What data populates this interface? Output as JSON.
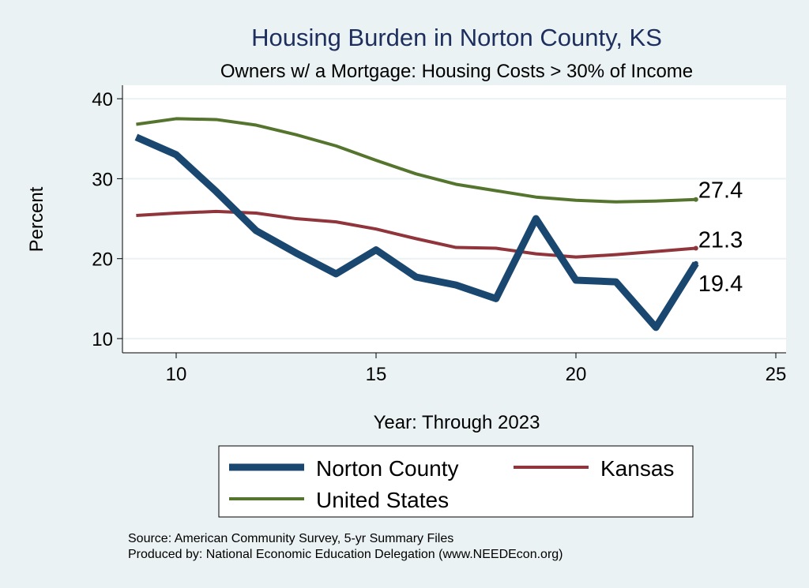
{
  "chart_data": {
    "type": "line",
    "title": "Housing Burden in Norton County, KS",
    "subtitle": "Owners w/ a Mortgage: Housing Costs > 30% of Income",
    "xlabel": "Year: Through 2023",
    "ylabel": "Percent",
    "xlim": [
      8.7,
      25.3
    ],
    "ylim": [
      8.2,
      41.7
    ],
    "xticks": [
      10,
      15,
      20,
      25
    ],
    "yticks": [
      10,
      20,
      30,
      40
    ],
    "grid": true,
    "legend_placement": "bottom",
    "x": [
      9,
      10,
      11,
      12,
      13,
      14,
      15,
      16,
      17,
      18,
      19,
      20,
      21,
      22,
      23
    ],
    "series": [
      {
        "name": "Norton County",
        "color": "#1a476f",
        "width": 9,
        "values": [
          35.2,
          33.0,
          28.4,
          23.5,
          20.7,
          18.1,
          21.1,
          17.7,
          16.7,
          15.0,
          25.0,
          17.3,
          17.1,
          11.4,
          19.4
        ],
        "end_label": "19.4"
      },
      {
        "name": "Kansas",
        "color": "#90353b",
        "width": 4,
        "values": [
          25.4,
          25.7,
          25.9,
          25.7,
          25.0,
          24.6,
          23.7,
          22.5,
          21.4,
          21.3,
          20.6,
          20.2,
          20.5,
          20.9,
          21.3
        ],
        "end_label": "21.3"
      },
      {
        "name": "United States",
        "color": "#55752f",
        "width": 4,
        "values": [
          36.8,
          37.5,
          37.4,
          36.7,
          35.5,
          34.1,
          32.3,
          30.6,
          29.3,
          28.5,
          27.7,
          27.3,
          27.1,
          27.2,
          27.4
        ],
        "end_label": "27.4"
      }
    ],
    "notes": [
      "Source: American Community Survey, 5-yr Summary Files",
      "Produced by: National Economic Education Delegation (www.NEEDEcon.org)"
    ]
  }
}
